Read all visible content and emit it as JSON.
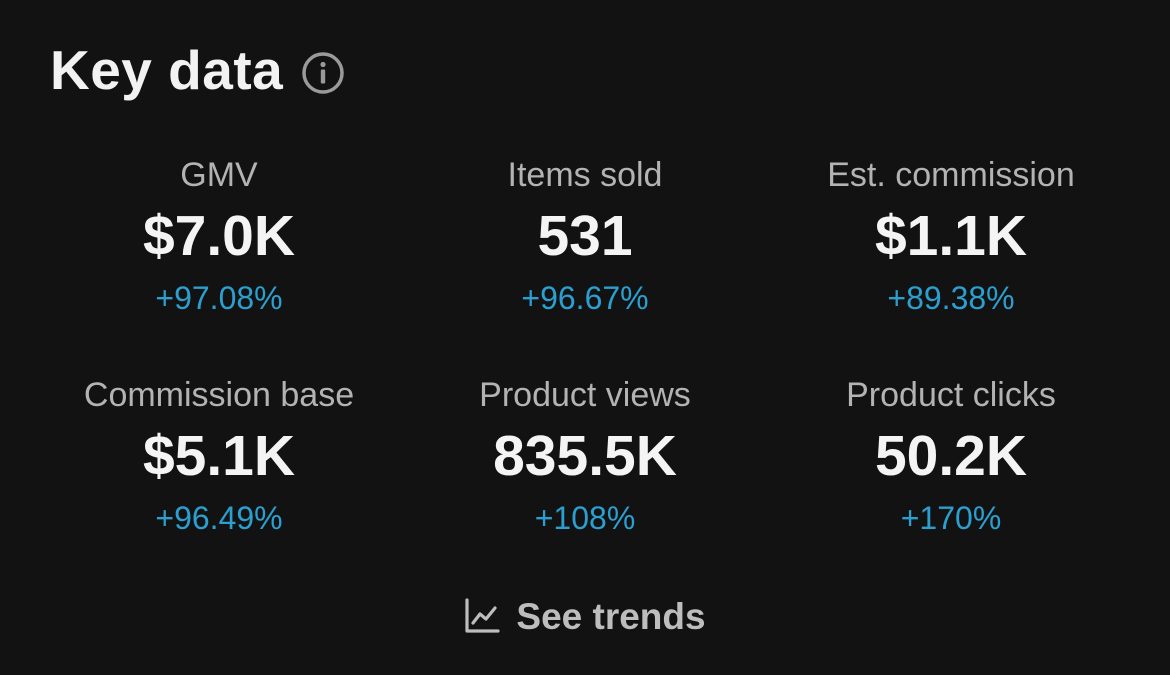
{
  "header": {
    "title": "Key data",
    "info_icon": "info-icon"
  },
  "metrics": [
    {
      "label": "GMV",
      "value": "$7.0K",
      "change": "+97.08%"
    },
    {
      "label": "Items sold",
      "value": "531",
      "change": "+96.67%"
    },
    {
      "label": "Est. commission",
      "value": "$1.1K",
      "change": "+89.38%"
    },
    {
      "label": "Commission base",
      "value": "$5.1K",
      "change": "+96.49%"
    },
    {
      "label": "Product views",
      "value": "835.5K",
      "change": "+108%"
    },
    {
      "label": "Product clicks",
      "value": "50.2K",
      "change": "+170%"
    }
  ],
  "trends": {
    "label": "See trends",
    "icon": "line-chart-icon"
  },
  "colors": {
    "background": "#121212",
    "positive_change": "#2a9fd0",
    "label": "#b3b3b3",
    "value": "#f4f4f4"
  }
}
